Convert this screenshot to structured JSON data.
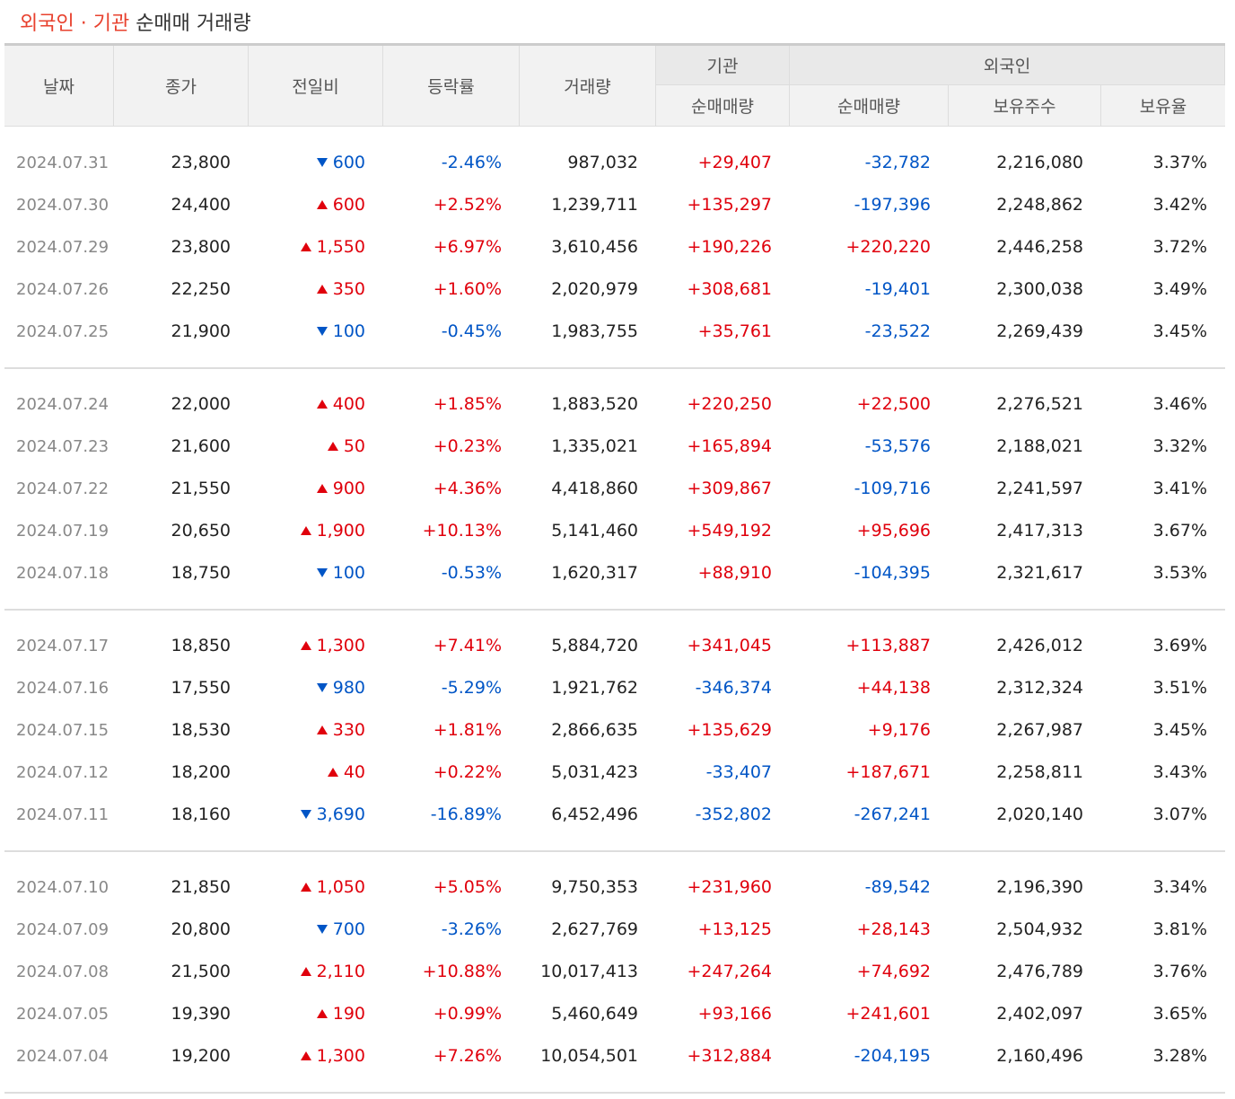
{
  "title": {
    "highlight": "외국인 · 기관",
    "rest": "순매매 거래량"
  },
  "header": {
    "columns": [
      "날짜",
      "종가",
      "전일비",
      "등락률",
      "거래량"
    ],
    "groups": [
      "기관",
      "외국인"
    ],
    "sub": [
      "순매매량",
      "순매매량",
      "보유주수",
      "보유율"
    ]
  },
  "groups": [
    [
      [
        "2024.07.31",
        "23,800",
        "600",
        "-2.46%",
        "987,032",
        "+29,407",
        "-32,782",
        "2,216,080",
        "3.37%"
      ],
      [
        "2024.07.30",
        "24,400",
        "600",
        "+2.52%",
        "1,239,711",
        "+135,297",
        "-197,396",
        "2,248,862",
        "3.42%"
      ],
      [
        "2024.07.29",
        "23,800",
        "1,550",
        "+6.97%",
        "3,610,456",
        "+190,226",
        "+220,220",
        "2,446,258",
        "3.72%"
      ],
      [
        "2024.07.26",
        "22,250",
        "350",
        "+1.60%",
        "2,020,979",
        "+308,681",
        "-19,401",
        "2,300,038",
        "3.49%"
      ],
      [
        "2024.07.25",
        "21,900",
        "100",
        "-0.45%",
        "1,983,755",
        "+35,761",
        "-23,522",
        "2,269,439",
        "3.45%"
      ]
    ],
    [
      [
        "2024.07.24",
        "22,000",
        "400",
        "+1.85%",
        "1,883,520",
        "+220,250",
        "+22,500",
        "2,276,521",
        "3.46%"
      ],
      [
        "2024.07.23",
        "21,600",
        "50",
        "+0.23%",
        "1,335,021",
        "+165,894",
        "-53,576",
        "2,188,021",
        "3.32%"
      ],
      [
        "2024.07.22",
        "21,550",
        "900",
        "+4.36%",
        "4,418,860",
        "+309,867",
        "-109,716",
        "2,241,597",
        "3.41%"
      ],
      [
        "2024.07.19",
        "20,650",
        "1,900",
        "+10.13%",
        "5,141,460",
        "+549,192",
        "+95,696",
        "2,417,313",
        "3.67%"
      ],
      [
        "2024.07.18",
        "18,750",
        "100",
        "-0.53%",
        "1,620,317",
        "+88,910",
        "-104,395",
        "2,321,617",
        "3.53%"
      ]
    ],
    [
      [
        "2024.07.17",
        "18,850",
        "1,300",
        "+7.41%",
        "5,884,720",
        "+341,045",
        "+113,887",
        "2,426,012",
        "3.69%"
      ],
      [
        "2024.07.16",
        "17,550",
        "980",
        "-5.29%",
        "1,921,762",
        "-346,374",
        "+44,138",
        "2,312,324",
        "3.51%"
      ],
      [
        "2024.07.15",
        "18,530",
        "330",
        "+1.81%",
        "2,866,635",
        "+135,629",
        "+9,176",
        "2,267,987",
        "3.45%"
      ],
      [
        "2024.07.12",
        "18,200",
        "40",
        "+0.22%",
        "5,031,423",
        "-33,407",
        "+187,671",
        "2,258,811",
        "3.43%"
      ],
      [
        "2024.07.11",
        "18,160",
        "3,690",
        "-16.89%",
        "6,452,496",
        "-352,802",
        "-267,241",
        "2,020,140",
        "3.07%"
      ]
    ],
    [
      [
        "2024.07.10",
        "21,850",
        "1,050",
        "+5.05%",
        "9,750,353",
        "+231,960",
        "-89,542",
        "2,196,390",
        "3.34%"
      ],
      [
        "2024.07.09",
        "20,800",
        "700",
        "-3.26%",
        "2,627,769",
        "+13,125",
        "+28,143",
        "2,504,932",
        "3.81%"
      ],
      [
        "2024.07.08",
        "21,500",
        "2,110",
        "+10.88%",
        "10,017,413",
        "+247,264",
        "+74,692",
        "2,476,789",
        "3.76%"
      ],
      [
        "2024.07.05",
        "19,390",
        "190",
        "+0.99%",
        "5,460,649",
        "+93,166",
        "+241,601",
        "2,402,097",
        "3.65%"
      ],
      [
        "2024.07.04",
        "19,200",
        "1,300",
        "+7.26%",
        "10,054,501",
        "+312,884",
        "-204,195",
        "2,160,496",
        "3.28%"
      ]
    ]
  ]
}
